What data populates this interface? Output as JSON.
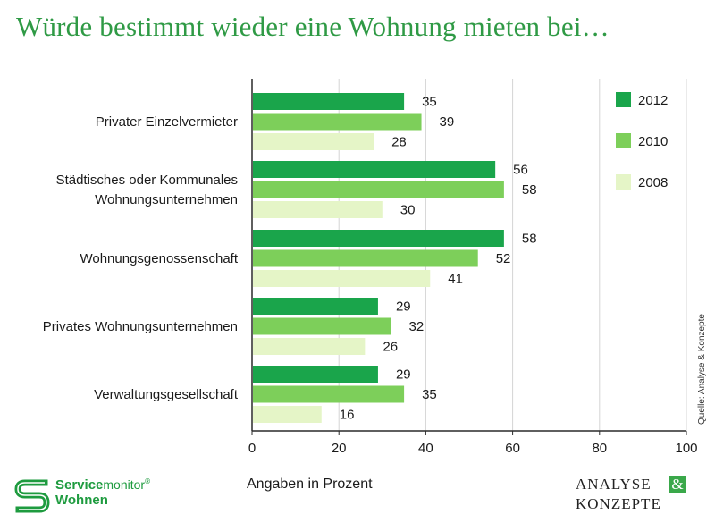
{
  "title": "Würde bestimmt wieder eine Wohnung mieten bei…",
  "source": "Quelle: Analyse & Konzepte",
  "logos": {
    "left_brand_bold": "Service",
    "left_brand_thin": "monitor",
    "left_brand_reg": "®",
    "left_brand_line2": "Wohnen",
    "right_line1": "ANALYSE",
    "right_amp": "&",
    "right_line2": "KONZEPTE"
  },
  "colors": {
    "title": "#2f9a45",
    "series_2012": "#1aa54b",
    "series_2010": "#7dcf5a",
    "series_2008": "#e5f5c7",
    "grid": "#d4d4d4"
  },
  "chart_data": {
    "type": "bar",
    "orientation": "horizontal",
    "categories": [
      [
        "Privater Einzelvermieter"
      ],
      [
        "Städtisches oder Kommunales",
        "Wohnungsunternehmen"
      ],
      [
        "Wohnungsgenossenschaft"
      ],
      [
        "Privates Wohnungsunternehmen"
      ],
      [
        "Verwaltungsgesellschaft"
      ]
    ],
    "series": [
      {
        "name": "2012",
        "values": [
          35,
          56,
          58,
          29,
          29
        ]
      },
      {
        "name": "2010",
        "values": [
          39,
          58,
          52,
          32,
          35
        ]
      },
      {
        "name": "2008",
        "values": [
          28,
          30,
          41,
          26,
          16
        ]
      }
    ],
    "xlabel": "Angaben in Prozent",
    "xlim": [
      0,
      100
    ],
    "xticks": [
      0,
      20,
      40,
      60,
      80,
      100
    ],
    "grid": "vertical",
    "legend": "top-right"
  }
}
